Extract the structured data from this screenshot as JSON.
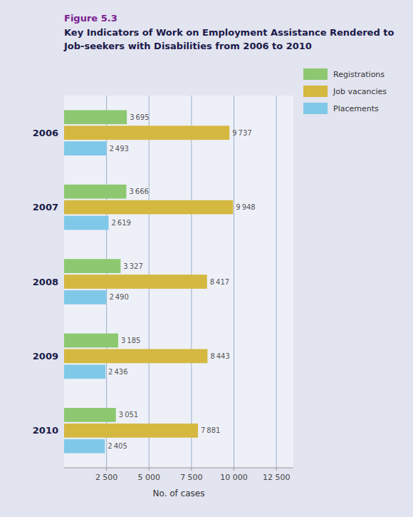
{
  "chart_data": {
    "type": "bar",
    "orientation": "horizontal",
    "annotations": [
      "Figure 5.3"
    ],
    "title": [
      "Key Indicators of Work on Employment Assistance Rendered to",
      "Job-seekers with Disabilities from 2006 to 2010"
    ],
    "xlabel": "No. of cases",
    "categories": [
      "2006",
      "2007",
      "2008",
      "2009",
      "2010"
    ],
    "series": [
      {
        "name": "Registrations",
        "color": "#8dc870",
        "values": [
          3695,
          3666,
          3327,
          3185,
          3051
        ],
        "value_labels": [
          "3 695",
          "3 666",
          "3 327",
          "3 185",
          "3 051"
        ]
      },
      {
        "name": "Job vacancies",
        "color": "#d4b840",
        "values": [
          9737,
          9948,
          8417,
          8443,
          7881
        ],
        "value_labels": [
          "9 737",
          "9 948",
          "8 417",
          "8 443",
          "7 881"
        ]
      },
      {
        "name": "Placements",
        "color": "#80c8e8",
        "values": [
          2493,
          2619,
          2490,
          2436,
          2405
        ],
        "value_labels": [
          "2 493",
          "2 619",
          "2 490",
          "2 436",
          "2 405"
        ]
      }
    ],
    "xlim": [
      0,
      13500
    ],
    "xticks": [
      {
        "value": 2500,
        "label": "2 500"
      },
      {
        "value": 5000,
        "label": "5 000"
      },
      {
        "value": 7500,
        "label": "7 500"
      },
      {
        "value": 10000,
        "label": "10 000"
      },
      {
        "value": 12500,
        "label": "12 500"
      }
    ],
    "grid": true,
    "legend": "right",
    "data_labels": true
  }
}
